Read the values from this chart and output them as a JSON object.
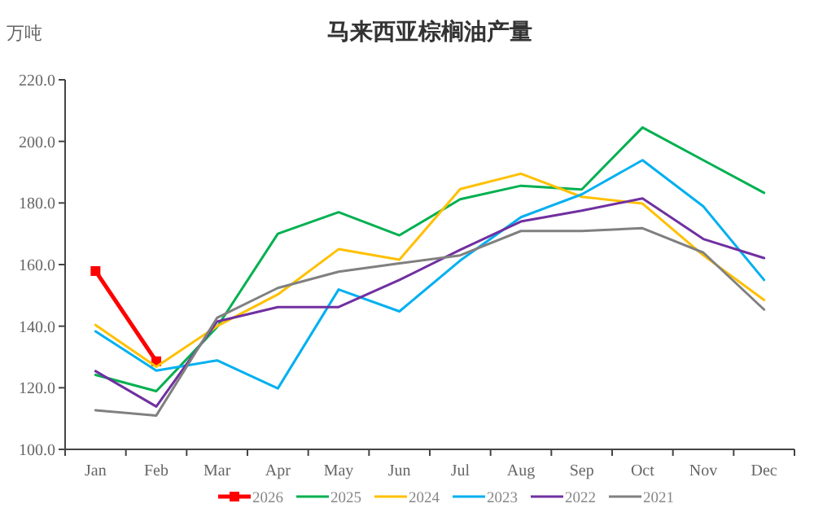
{
  "chart_data": {
    "type": "line",
    "title": "马来西亚棕榈油产量",
    "ylabel": "万吨",
    "categories": [
      "Jan",
      "Feb",
      "Mar",
      "Apr",
      "May",
      "Jun",
      "Jul",
      "Aug",
      "Sep",
      "Oct",
      "Nov",
      "Dec"
    ],
    "ylim": [
      100,
      220
    ],
    "yticks": [
      {
        "value": 100,
        "label": "100.0"
      },
      {
        "value": 120,
        "label": "120.0"
      },
      {
        "value": 140,
        "label": "140.0"
      },
      {
        "value": 160,
        "label": "160.0"
      },
      {
        "value": 180,
        "label": "180.0"
      },
      {
        "value": 200,
        "label": "200.0"
      },
      {
        "value": 220,
        "label": "220.0"
      }
    ],
    "legend": "bottom",
    "grid": false,
    "series": [
      {
        "name": "2026",
        "color": "#ff0000",
        "marker": "square",
        "values": [
          157.9,
          128.6,
          null,
          null,
          null,
          null,
          null,
          null,
          null,
          null,
          null,
          null
        ]
      },
      {
        "name": "2025",
        "color": "#00b050",
        "values": [
          124.2,
          118.9,
          139.7,
          170,
          177,
          169.5,
          181.2,
          185.6,
          184.4,
          204.5,
          193.9,
          183.3
        ]
      },
      {
        "name": "2024",
        "color": "#ffc000",
        "values": [
          140.4,
          126.8,
          140,
          150.3,
          165,
          161.6,
          184.5,
          189.5,
          182,
          179.8,
          163,
          148.5
        ]
      },
      {
        "name": "2023",
        "color": "#00b0f0",
        "values": [
          138.3,
          125.6,
          128.9,
          119.8,
          151.9,
          144.8,
          161.3,
          175.4,
          182.8,
          193.9,
          178.9,
          155
        ]
      },
      {
        "name": "2022",
        "color": "#7030a0",
        "values": [
          125.4,
          113.9,
          141.5,
          146.2,
          146.2,
          155,
          164.8,
          174,
          177.5,
          181.5,
          168.3,
          162.1
        ]
      },
      {
        "name": "2021",
        "color": "#808080",
        "values": [
          112.7,
          111,
          142.7,
          152.4,
          157.7,
          160.4,
          163,
          170.9,
          170.9,
          171.8,
          163.9,
          145.4
        ]
      }
    ]
  }
}
